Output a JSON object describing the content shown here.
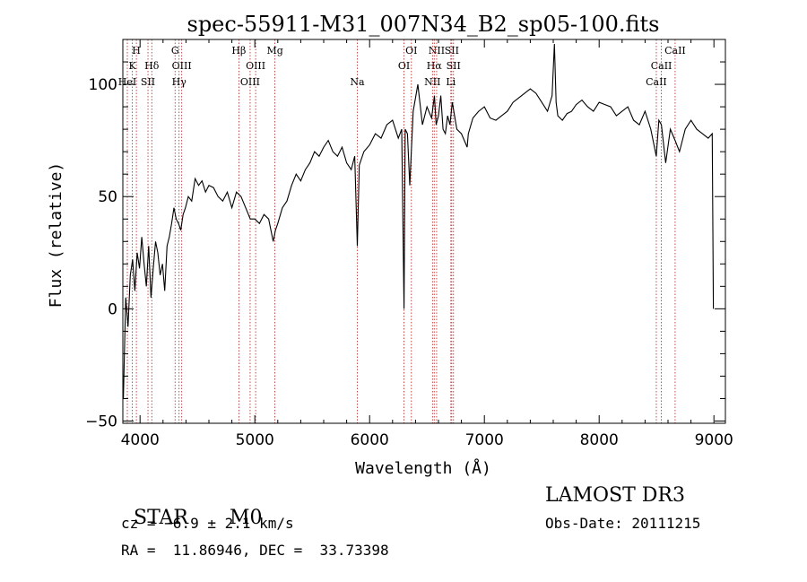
{
  "chart_data": {
    "type": "line",
    "title": "spec-55911-M31_007N34_B2_sp05-100.fits",
    "xlabel": "Wavelength (Å)",
    "ylabel": "Flux (relative)",
    "xlim": [
      3850,
      9100
    ],
    "ylim": [
      -51,
      120
    ],
    "xticks": [
      4000,
      5000,
      6000,
      7000,
      8000,
      9000
    ],
    "xtick_labels": [
      "4000",
      "5000",
      "6000",
      "7000",
      "8000",
      "9000"
    ],
    "yticks": [
      -50,
      0,
      50,
      100
    ],
    "ytick_labels": [
      "−50",
      "0",
      "50",
      "100"
    ],
    "grid": false,
    "line_color": "#000000",
    "marker_color": "#b22222",
    "lines": [
      {
        "label": "H",
        "wavelength": 3968,
        "row": 0
      },
      {
        "label": "K",
        "wavelength": 3933,
        "row": 1
      },
      {
        "label": "HeI",
        "wavelength": 3889,
        "row": 2
      },
      {
        "label": "Hδ",
        "wavelength": 4102,
        "row": 1
      },
      {
        "label": "SII",
        "wavelength": 4069,
        "row": 2
      },
      {
        "label": "G",
        "wavelength": 4305,
        "row": 0
      },
      {
        "label": "OIII",
        "wavelength": 4363,
        "row": 1
      },
      {
        "label": "Hγ",
        "wavelength": 4340,
        "row": 2
      },
      {
        "label": "Hβ",
        "wavelength": 4861,
        "row": 0
      },
      {
        "label": "OIII",
        "wavelength": 5007,
        "row": 1
      },
      {
        "label": "OIII",
        "wavelength": 4959,
        "row": 2
      },
      {
        "label": "Mg",
        "wavelength": 5175,
        "row": 0
      },
      {
        "label": "Na",
        "wavelength": 5893,
        "row": 2
      },
      {
        "label": "OI",
        "wavelength": 6364,
        "row": 0
      },
      {
        "label": "OI",
        "wavelength": 6300,
        "row": 1
      },
      {
        "label": "NII",
        "wavelength": 6584,
        "row": 0
      },
      {
        "label": "SII",
        "wavelength": 6716,
        "row": 0
      },
      {
        "label": "Hα",
        "wavelength": 6563,
        "row": 1
      },
      {
        "label": "SII",
        "wavelength": 6731,
        "row": 1
      },
      {
        "label": "NII",
        "wavelength": 6548,
        "row": 2
      },
      {
        "label": "Li",
        "wavelength": 6708,
        "row": 2
      },
      {
        "label": "CaII",
        "wavelength": 8662,
        "row": 0
      },
      {
        "label": "CaII",
        "wavelength": 8542,
        "row": 1
      },
      {
        "label": "CaII",
        "wavelength": 8498,
        "row": 2
      }
    ],
    "series": [
      {
        "x": [
          3855,
          3875,
          3895,
          3915,
          3935,
          3955,
          3975,
          3995,
          4015,
          4035,
          4055,
          4075,
          4095,
          4115,
          4135,
          4155,
          4175,
          4195,
          4215,
          4235,
          4255,
          4275,
          4295,
          4315,
          4335,
          4355,
          4375,
          4395,
          4420,
          4450,
          4480,
          4510,
          4540,
          4570,
          4600,
          4640,
          4680,
          4720,
          4760,
          4800,
          4840,
          4880,
          4920,
          4960,
          5000,
          5040,
          5080,
          5120,
          5160,
          5180,
          5200,
          5240,
          5280,
          5320,
          5360,
          5400,
          5440,
          5480,
          5520,
          5560,
          5600,
          5640,
          5680,
          5720,
          5760,
          5800,
          5840,
          5870,
          5893,
          5910,
          5950,
          6000,
          6050,
          6100,
          6150,
          6200,
          6250,
          6280,
          6300,
          6310,
          6330,
          6350,
          6380,
          6420,
          6460,
          6500,
          6540,
          6565,
          6580,
          6600,
          6620,
          6640,
          6660,
          6680,
          6700,
          6720,
          6760,
          6800,
          6850,
          6860,
          6900,
          6950,
          7000,
          7050,
          7100,
          7150,
          7200,
          7250,
          7300,
          7350,
          7400,
          7450,
          7500,
          7550,
          7590,
          7610,
          7625,
          7640,
          7680,
          7720,
          7760,
          7800,
          7850,
          7900,
          7950,
          8000,
          8050,
          8100,
          8150,
          8200,
          8250,
          8300,
          8350,
          8400,
          8450,
          8498,
          8520,
          8542,
          8580,
          8620,
          8662,
          8700,
          8750,
          8800,
          8850,
          8900,
          8950,
          8985,
          8995
        ],
        "y": [
          -40,
          5,
          -8,
          15,
          22,
          8,
          25,
          18,
          32,
          20,
          10,
          28,
          5,
          18,
          30,
          25,
          15,
          20,
          8,
          28,
          32,
          38,
          45,
          40,
          38,
          35,
          42,
          45,
          50,
          48,
          58,
          55,
          57,
          52,
          55,
          54,
          50,
          48,
          52,
          45,
          52,
          50,
          45,
          40,
          40,
          38,
          42,
          40,
          30,
          35,
          38,
          45,
          48,
          55,
          60,
          57,
          62,
          65,
          70,
          68,
          72,
          75,
          70,
          68,
          72,
          65,
          62,
          68,
          28,
          64,
          70,
          73,
          78,
          76,
          82,
          84,
          76,
          80,
          0,
          80,
          78,
          55,
          88,
          100,
          82,
          90,
          85,
          95,
          82,
          86,
          95,
          80,
          78,
          86,
          82,
          92,
          80,
          78,
          72,
          78,
          85,
          88,
          90,
          85,
          84,
          86,
          88,
          92,
          94,
          96,
          98,
          96,
          92,
          88,
          95,
          118,
          92,
          86,
          84,
          87,
          88,
          91,
          93,
          90,
          88,
          92,
          91,
          90,
          86,
          88,
          90,
          84,
          82,
          88,
          80,
          68,
          84,
          82,
          65,
          80,
          75,
          70,
          80,
          84,
          80,
          78,
          76,
          78,
          0
        ]
      }
    ]
  },
  "info": {
    "object_class": "STAR",
    "subclass": "M0",
    "redshift": "cz = −6.9 ± 2.1 km/s",
    "coords": "RA =  11.86946, DEC =  33.73398",
    "survey": "LAMOST DR3",
    "obs_date": "Obs-Date: 20111215"
  }
}
